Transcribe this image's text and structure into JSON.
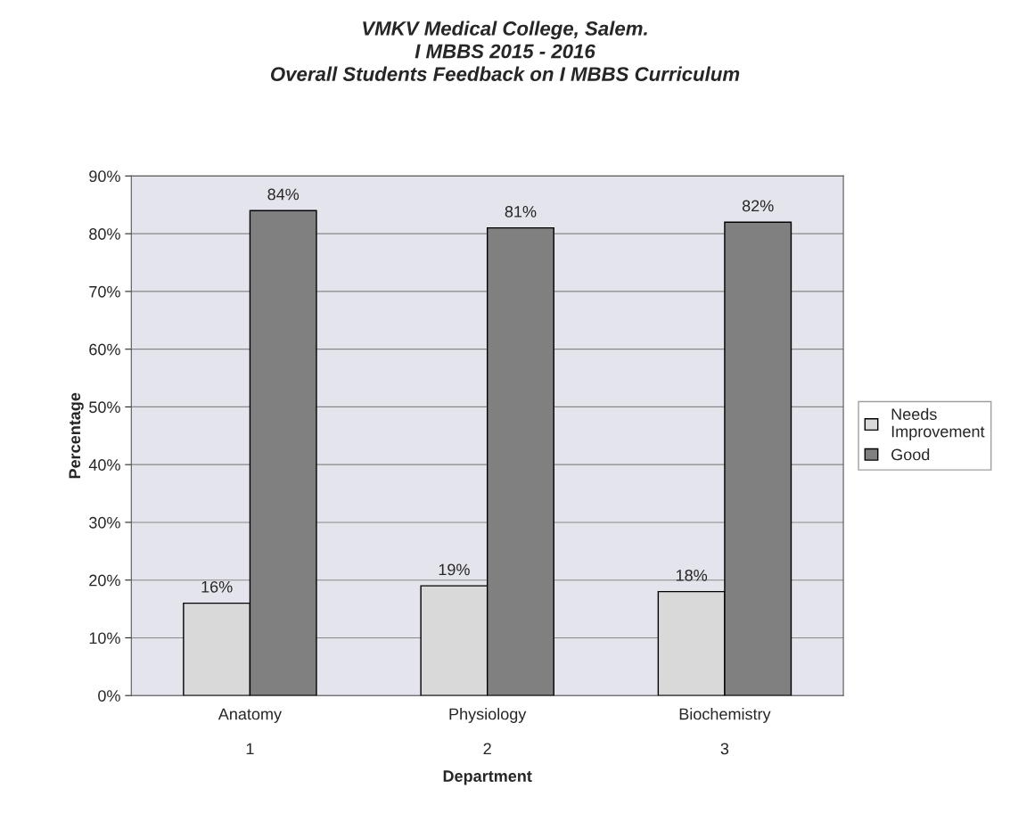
{
  "chart_data": {
    "type": "bar",
    "title": "VMKV Medical College, Salem.\nI MBBS 2015 - 2016\nOverall Students Feedback on I MBBS Curriculum",
    "categories": [
      "Anatomy\n\n1",
      "Physiology\n\n2",
      "Biochemistry\n\n3"
    ],
    "xlabel": "Department",
    "ylabel": "Percentage",
    "series": [
      {
        "name": "Needs\nImprovement",
        "color": "#d9d9d9",
        "values": [
          16,
          19,
          18
        ],
        "value_labels": [
          "16%",
          "19%",
          "18%"
        ]
      },
      {
        "name": "Good",
        "color": "#808080",
        "values": [
          84,
          81,
          82
        ],
        "value_labels": [
          "84%",
          "81%",
          "82%"
        ]
      }
    ],
    "ylim": [
      0,
      90
    ],
    "yticks": [
      {
        "value": 0,
        "label": "0%"
      },
      {
        "value": 10,
        "label": "10%"
      },
      {
        "value": 20,
        "label": "20%"
      },
      {
        "value": 30,
        "label": "30%"
      },
      {
        "value": 40,
        "label": "40%"
      },
      {
        "value": 50,
        "label": "50%"
      },
      {
        "value": 60,
        "label": "60%"
      },
      {
        "value": 70,
        "label": "70%"
      },
      {
        "value": 80,
        "label": "80%"
      },
      {
        "value": 90,
        "label": "90%"
      }
    ],
    "grid": "y",
    "legend": "right"
  }
}
